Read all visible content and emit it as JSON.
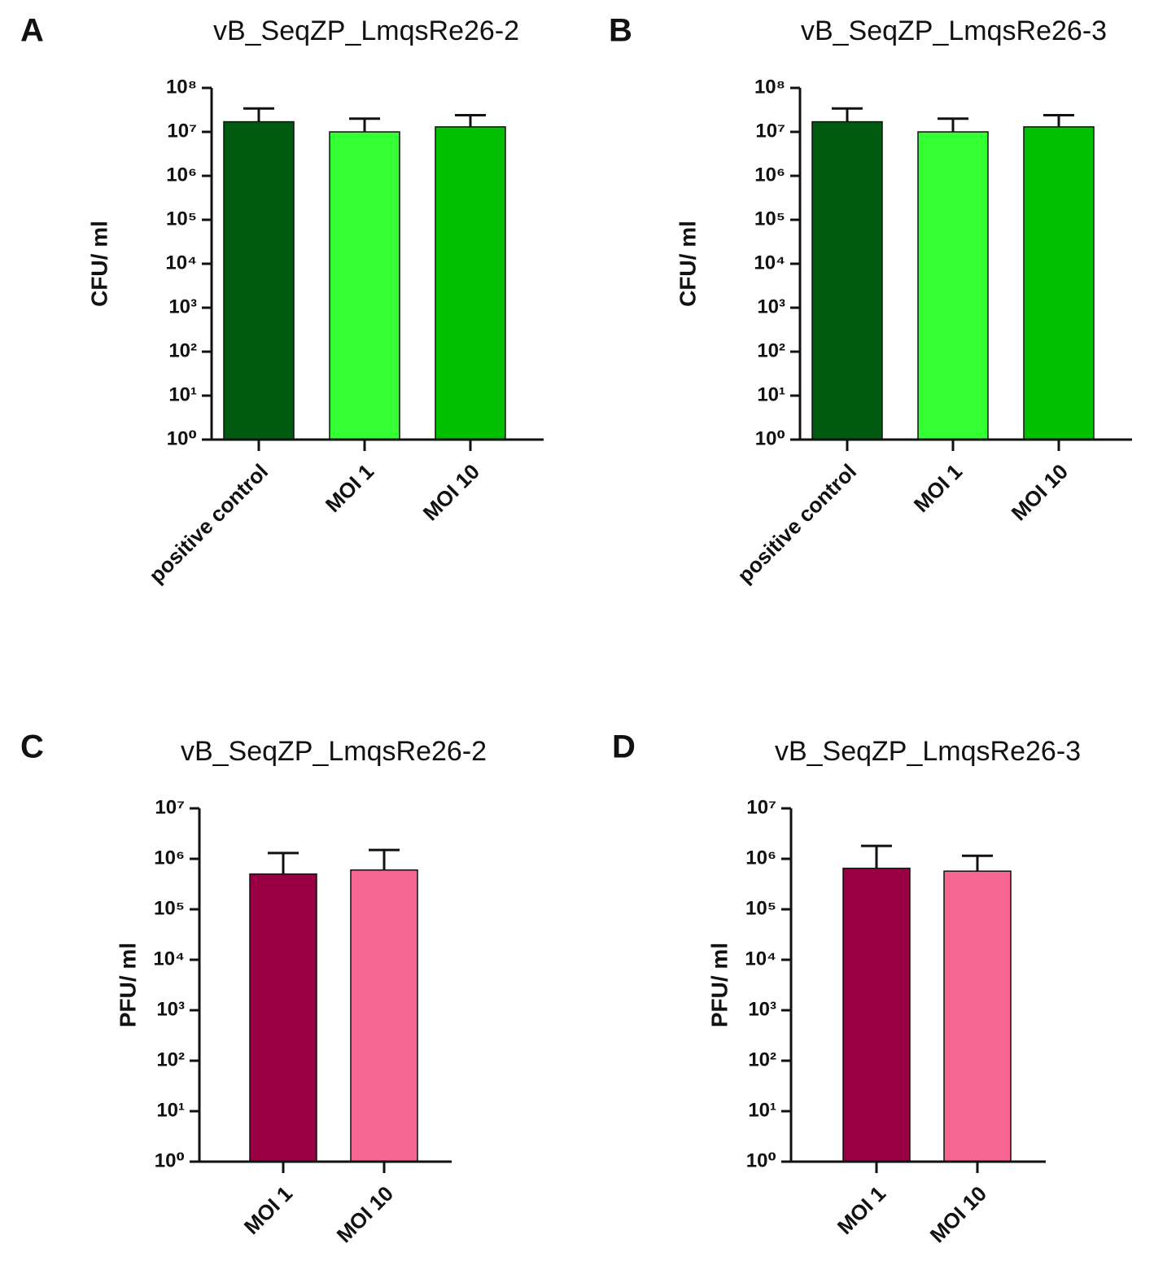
{
  "chart_data": [
    {
      "type": "bar",
      "panel": "A",
      "title": "vB_SeqZP_LmqsRe26-2",
      "ylabel": "CFU/ ml",
      "log": true,
      "categories": [
        "positive control",
        "MOI 1",
        "MOI 10"
      ],
      "values": [
        17000000,
        10000000,
        13000000
      ],
      "errors": [
        17000000,
        10000000,
        11000000
      ],
      "colors": [
        "#005a0f",
        "#33ff33",
        "#00c000"
      ],
      "ylim": [
        1,
        100000000
      ],
      "yticks": [
        {
          "value": 1,
          "label": "10⁰"
        },
        {
          "value": 10,
          "label": "10¹"
        },
        {
          "value": 100,
          "label": "10²"
        },
        {
          "value": 1000,
          "label": "10³"
        },
        {
          "value": 10000,
          "label": "10⁴"
        },
        {
          "value": 100000,
          "label": "10⁵"
        },
        {
          "value": 1000000,
          "label": "10⁶"
        },
        {
          "value": 10000000,
          "label": "10⁷"
        },
        {
          "value": 100000000,
          "label": "10⁸"
        }
      ]
    },
    {
      "type": "bar",
      "panel": "B",
      "title": "vB_SeqZP_LmqsRe26-3",
      "ylabel": "CFU/ ml",
      "log": true,
      "categories": [
        "positive control",
        "MOI 1",
        "MOI 10"
      ],
      "values": [
        17000000,
        10000000,
        13000000
      ],
      "errors": [
        17000000,
        10000000,
        11000000
      ],
      "colors": [
        "#005a0f",
        "#33ff33",
        "#00c000"
      ],
      "ylim": [
        1,
        100000000
      ],
      "yticks": [
        {
          "value": 1,
          "label": "10⁰"
        },
        {
          "value": 10,
          "label": "10¹"
        },
        {
          "value": 100,
          "label": "10²"
        },
        {
          "value": 1000,
          "label": "10³"
        },
        {
          "value": 10000,
          "label": "10⁴"
        },
        {
          "value": 100000,
          "label": "10⁵"
        },
        {
          "value": 1000000,
          "label": "10⁶"
        },
        {
          "value": 10000000,
          "label": "10⁷"
        },
        {
          "value": 100000000,
          "label": "10⁸"
        }
      ]
    },
    {
      "type": "bar",
      "panel": "C",
      "title": "vB_SeqZP_LmqsRe26-2",
      "ylabel": "PFU/ ml",
      "log": true,
      "categories": [
        "MOI 1",
        "MOI 10"
      ],
      "values": [
        500000,
        600000
      ],
      "errors": [
        800000,
        900000
      ],
      "colors": [
        "#990044",
        "#f76693"
      ],
      "ylim": [
        1,
        10000000
      ],
      "yticks": [
        {
          "value": 1,
          "label": "10⁰"
        },
        {
          "value": 10,
          "label": "10¹"
        },
        {
          "value": 100,
          "label": "10²"
        },
        {
          "value": 1000,
          "label": "10³"
        },
        {
          "value": 10000,
          "label": "10⁴"
        },
        {
          "value": 100000,
          "label": "10⁵"
        },
        {
          "value": 1000000,
          "label": "10⁶"
        },
        {
          "value": 10000000,
          "label": "10⁷"
        }
      ]
    },
    {
      "type": "bar",
      "panel": "D",
      "title": "vB_SeqZP_LmqsRe26-3",
      "ylabel": "PFU/ ml",
      "log": true,
      "categories": [
        "MOI 1",
        "MOI 10"
      ],
      "values": [
        650000,
        570000
      ],
      "errors": [
        1150000,
        580000
      ],
      "colors": [
        "#990044",
        "#f76693"
      ],
      "ylim": [
        1,
        10000000
      ],
      "yticks": [
        {
          "value": 1,
          "label": "10⁰"
        },
        {
          "value": 10,
          "label": "10¹"
        },
        {
          "value": 100,
          "label": "10²"
        },
        {
          "value": 1000,
          "label": "10³"
        },
        {
          "value": 10000,
          "label": "10⁴"
        },
        {
          "value": 100000,
          "label": "10⁵"
        },
        {
          "value": 1000000,
          "label": "10⁶"
        },
        {
          "value": 10000000,
          "label": "10⁷"
        }
      ]
    }
  ]
}
